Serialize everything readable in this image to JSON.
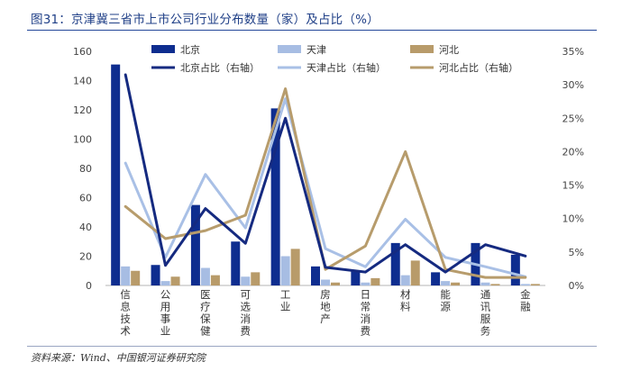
{
  "figure_title": "图31：京津冀三省市上市公司行业分布数量（家）及占比（%）",
  "source": "资料来源：Wind、中国银河证券研究院",
  "colors": {
    "beijing_bar": "#0e2d8f",
    "tianjin_bar": "#a7bde3",
    "hebei_bar": "#b89b6a",
    "beijing_line": "#152a80",
    "tianjin_line": "#a9c0e6",
    "hebei_line": "#b79c6c"
  },
  "chart_data": {
    "type": "bar",
    "combo": "bar+line (dual axis)",
    "title": "京津冀三省市上市公司行业分布数量（家）及占比（%）",
    "categories": [
      "信息技术",
      "公用事业",
      "医疗保健",
      "可选消费",
      "工业",
      "房地产",
      "日常消费",
      "材料",
      "能源",
      "通讯服务",
      "金融"
    ],
    "series": [
      {
        "name": "北京",
        "type": "bar",
        "axis": "left",
        "values": [
          151,
          14,
          55,
          30,
          121,
          13,
          10,
          29,
          9,
          29,
          21
        ]
      },
      {
        "name": "天津",
        "type": "bar",
        "axis": "left",
        "values": [
          13,
          3,
          12,
          6,
          20,
          4,
          2,
          7,
          3,
          2,
          1
        ]
      },
      {
        "name": "河北",
        "type": "bar",
        "axis": "left",
        "values": [
          10,
          6,
          7,
          9,
          25,
          2,
          5,
          17,
          2,
          1,
          1
        ]
      },
      {
        "name": "北京占比（右轴）",
        "type": "line",
        "axis": "right",
        "values": [
          31.5,
          3,
          11.5,
          6.3,
          25,
          2.7,
          2,
          6.1,
          2,
          6.1,
          4.4
        ]
      },
      {
        "name": "天津占比（右轴）",
        "type": "line",
        "axis": "right",
        "values": [
          18.3,
          4.2,
          16.6,
          8.6,
          27.9,
          5.5,
          2.8,
          9.9,
          4.2,
          2.8,
          1.3
        ]
      },
      {
        "name": "河北占比（右轴）",
        "type": "line",
        "axis": "right",
        "values": [
          11.8,
          7,
          8.2,
          10.5,
          29.4,
          2.4,
          5.9,
          20,
          2.4,
          1.2,
          1.2
        ]
      }
    ],
    "ylim": [
      0,
      160
    ],
    "yticks": [
      0,
      20,
      40,
      60,
      80,
      100,
      120,
      140,
      160
    ],
    "y2lim": [
      0,
      35
    ],
    "y2ticks": [
      0,
      5,
      10,
      15,
      20,
      25,
      30,
      35
    ],
    "y2_tick_labels": [
      "0%",
      "5%",
      "10%",
      "15%",
      "20%",
      "25%",
      "30%",
      "35%"
    ],
    "xlabel": "",
    "ylabel": "",
    "legend": {
      "position": "top-center",
      "columns": 3
    },
    "grid": false
  }
}
